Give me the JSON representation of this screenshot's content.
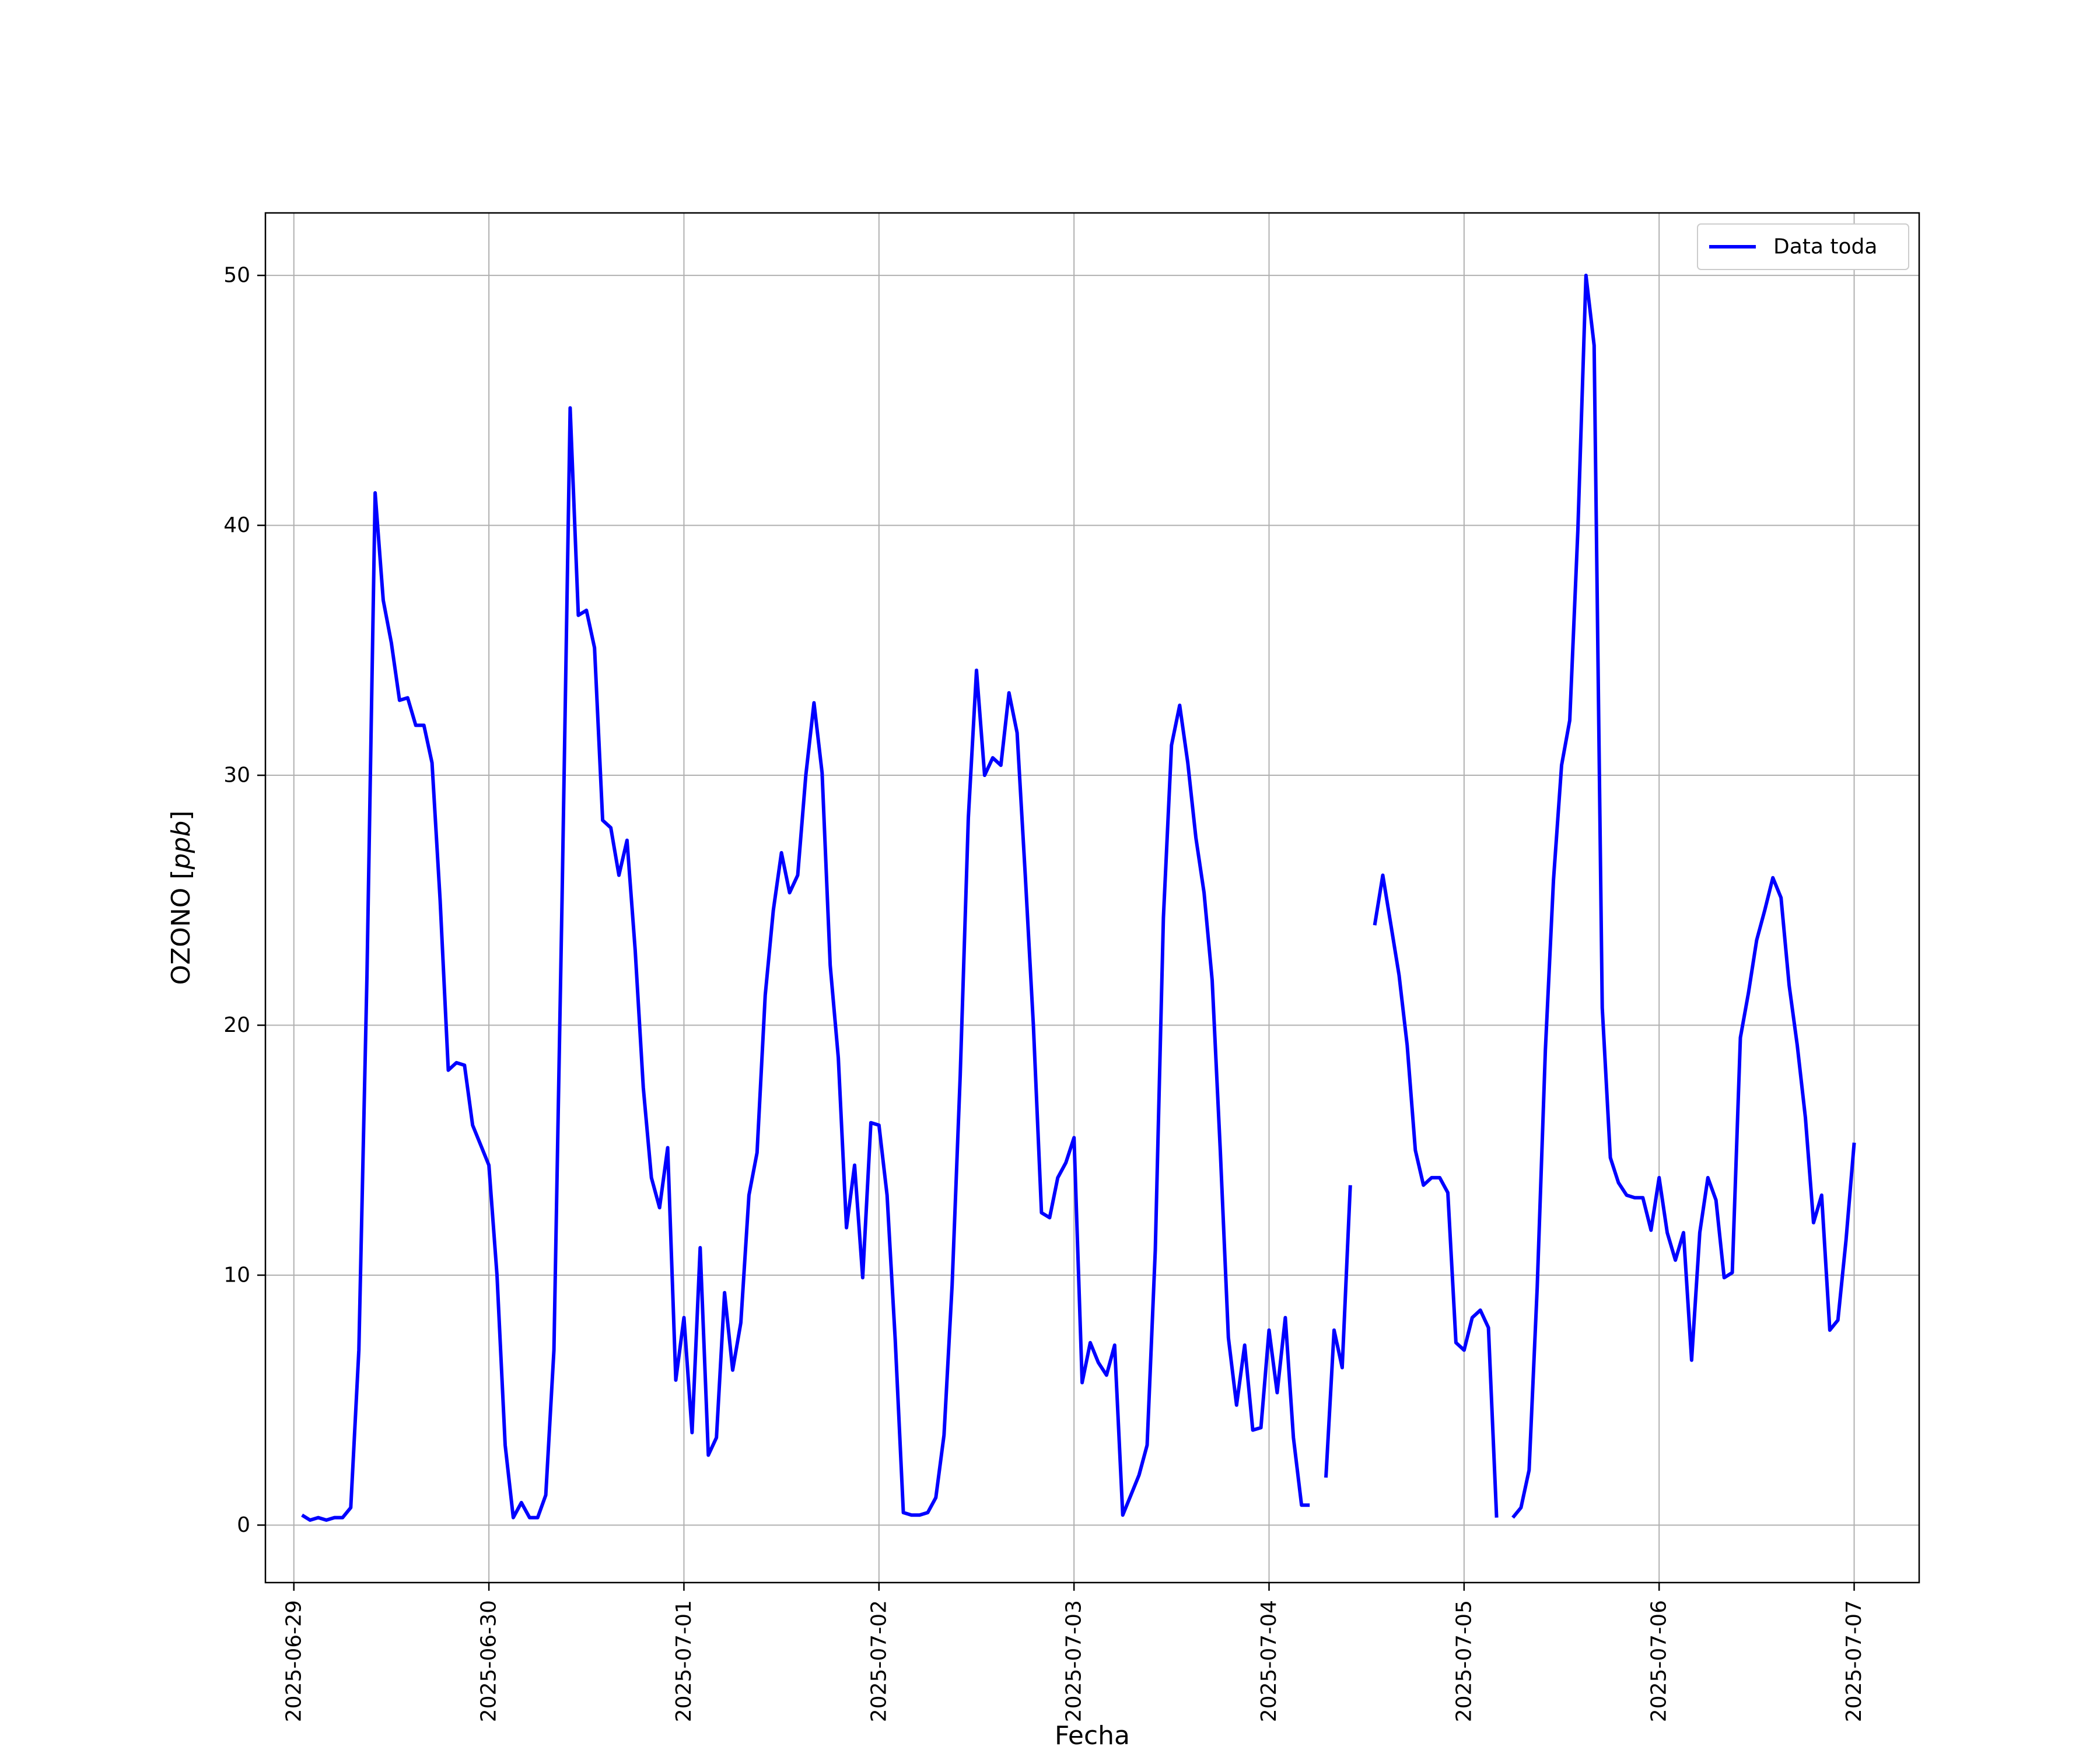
{
  "chart_data": {
    "type": "line",
    "title": "",
    "xlabel": "Fecha",
    "ylabel_text": "OZONO [",
    "ylabel_unit": "ppb",
    "ylabel_close": "]",
    "x_ticks": [
      "2025-06-29",
      "2025-06-30",
      "2025-07-01",
      "2025-07-02",
      "2025-07-03",
      "2025-07-04",
      "2025-07-05",
      "2025-07-06",
      "2025-07-07"
    ],
    "y_ticks": [
      0,
      10,
      20,
      30,
      40,
      50
    ],
    "xlim": [
      "2025-06-28T20:30",
      "2025-07-07T08:00"
    ],
    "ylim": [
      -2.3,
      52.5
    ],
    "grid": true,
    "legend": {
      "position": "top-right",
      "entries": [
        "Data toda"
      ]
    },
    "series": [
      {
        "name": "Data toda",
        "color": "#0000ff",
        "segments": [
          [
            [
              "2025-06-29T01:00",
              0.4
            ],
            [
              "2025-06-29T02:00",
              0.2
            ],
            [
              "2025-06-29T03:00",
              0.3
            ],
            [
              "2025-06-29T04:00",
              0.2
            ],
            [
              "2025-06-29T05:00",
              0.3
            ],
            [
              "2025-06-29T06:00",
              0.3
            ],
            [
              "2025-06-29T07:00",
              0.7
            ],
            [
              "2025-06-29T08:00",
              7.0
            ],
            [
              "2025-06-29T09:00",
              22.0
            ],
            [
              "2025-06-29T10:00",
              41.3
            ],
            [
              "2025-06-29T11:00",
              37.0
            ],
            [
              "2025-06-29T12:00",
              35.3
            ],
            [
              "2025-06-29T13:00",
              33.0
            ],
            [
              "2025-06-29T14:00",
              33.1
            ],
            [
              "2025-06-29T15:00",
              32.0
            ],
            [
              "2025-06-29T16:00",
              32.0
            ],
            [
              "2025-06-29T17:00",
              30.5
            ],
            [
              "2025-06-29T18:00",
              25.0
            ],
            [
              "2025-06-29T19:00",
              18.2
            ],
            [
              "2025-06-29T20:00",
              18.5
            ],
            [
              "2025-06-29T21:00",
              18.4
            ],
            [
              "2025-06-29T22:00",
              16.0
            ],
            [
              "2025-06-29T23:00",
              15.2
            ],
            [
              "2025-06-30T00:00",
              14.4
            ],
            [
              "2025-06-30T01:00",
              10.0
            ],
            [
              "2025-06-30T02:00",
              3.2
            ],
            [
              "2025-06-30T03:00",
              0.3
            ],
            [
              "2025-06-30T04:00",
              0.9
            ],
            [
              "2025-06-30T05:00",
              0.3
            ],
            [
              "2025-06-30T06:00",
              0.3
            ],
            [
              "2025-06-30T07:00",
              1.2
            ],
            [
              "2025-06-30T08:00",
              7.0
            ],
            [
              "2025-06-30T09:00",
              25.0
            ],
            [
              "2025-06-30T10:00",
              44.7
            ],
            [
              "2025-06-30T11:00",
              36.4
            ],
            [
              "2025-06-30T12:00",
              36.6
            ],
            [
              "2025-06-30T13:00",
              35.1
            ],
            [
              "2025-06-30T14:00",
              28.2
            ],
            [
              "2025-06-30T15:00",
              27.9
            ],
            [
              "2025-06-30T16:00",
              26.0
            ],
            [
              "2025-06-30T17:00",
              27.4
            ],
            [
              "2025-06-30T18:00",
              23.0
            ],
            [
              "2025-06-30T19:00",
              17.5
            ],
            [
              "2025-06-30T20:00",
              13.9
            ],
            [
              "2025-06-30T21:00",
              12.7
            ],
            [
              "2025-06-30T22:00",
              15.1
            ],
            [
              "2025-06-30T23:00",
              5.8
            ],
            [
              "2025-07-01T00:00",
              8.3
            ],
            [
              "2025-07-01T01:00",
              3.7
            ],
            [
              "2025-07-01T02:00",
              11.1
            ],
            [
              "2025-07-01T03:00",
              2.8
            ],
            [
              "2025-07-01T04:00",
              3.5
            ],
            [
              "2025-07-01T05:00",
              9.3
            ],
            [
              "2025-07-01T06:00",
              6.2
            ],
            [
              "2025-07-01T07:00",
              8.1
            ],
            [
              "2025-07-01T08:00",
              13.2
            ],
            [
              "2025-07-01T09:00",
              14.9
            ],
            [
              "2025-07-01T10:00",
              21.2
            ],
            [
              "2025-07-01T11:00",
              24.6
            ],
            [
              "2025-07-01T12:00",
              26.9
            ],
            [
              "2025-07-01T13:00",
              25.3
            ],
            [
              "2025-07-01T14:00",
              26.0
            ],
            [
              "2025-07-01T15:00",
              30.0
            ],
            [
              "2025-07-01T16:00",
              32.9
            ],
            [
              "2025-07-01T17:00",
              30.1
            ],
            [
              "2025-07-01T18:00",
              22.4
            ],
            [
              "2025-07-01T19:00",
              18.7
            ],
            [
              "2025-07-01T20:00",
              11.9
            ],
            [
              "2025-07-01T21:00",
              14.4
            ],
            [
              "2025-07-01T22:00",
              9.9
            ],
            [
              "2025-07-01T23:00",
              16.1
            ],
            [
              "2025-07-02T00:00",
              16.0
            ],
            [
              "2025-07-02T01:00",
              13.2
            ],
            [
              "2025-07-02T02:00",
              7.4
            ],
            [
              "2025-07-02T03:00",
              0.5
            ],
            [
              "2025-07-02T04:00",
              0.4
            ],
            [
              "2025-07-02T05:00",
              0.4
            ],
            [
              "2025-07-02T06:00",
              0.5
            ],
            [
              "2025-07-02T07:00",
              1.1
            ],
            [
              "2025-07-02T08:00",
              3.6
            ],
            [
              "2025-07-02T09:00",
              9.6
            ],
            [
              "2025-07-02T10:00",
              18.0
            ],
            [
              "2025-07-02T11:00",
              28.3
            ],
            [
              "2025-07-02T12:00",
              34.2
            ],
            [
              "2025-07-02T13:00",
              30.0
            ],
            [
              "2025-07-02T14:00",
              30.7
            ],
            [
              "2025-07-02T15:00",
              30.4
            ],
            [
              "2025-07-02T16:00",
              33.3
            ],
            [
              "2025-07-02T17:00",
              31.7
            ],
            [
              "2025-07-02T18:00",
              26.0
            ],
            [
              "2025-07-02T19:00",
              20.0
            ],
            [
              "2025-07-02T20:00",
              12.5
            ],
            [
              "2025-07-02T21:00",
              12.3
            ],
            [
              "2025-07-02T22:00",
              13.9
            ],
            [
              "2025-07-02T23:00",
              14.5
            ],
            [
              "2025-07-03T00:00",
              15.5
            ],
            [
              "2025-07-03T01:00",
              5.7
            ],
            [
              "2025-07-03T02:00",
              7.3
            ],
            [
              "2025-07-03T03:00",
              6.5
            ],
            [
              "2025-07-03T04:00",
              6.0
            ],
            [
              "2025-07-03T05:00",
              7.2
            ],
            [
              "2025-07-03T06:00",
              0.4
            ],
            [
              "2025-07-03T07:00",
              1.2
            ],
            [
              "2025-07-03T08:00",
              2.0
            ],
            [
              "2025-07-03T09:00",
              3.2
            ],
            [
              "2025-07-03T10:00",
              11.0
            ],
            [
              "2025-07-03T11:00",
              24.3
            ],
            [
              "2025-07-03T12:00",
              31.2
            ],
            [
              "2025-07-03T13:00",
              32.8
            ],
            [
              "2025-07-03T14:00",
              30.5
            ],
            [
              "2025-07-03T15:00",
              27.5
            ],
            [
              "2025-07-03T16:00",
              25.3
            ],
            [
              "2025-07-03T17:00",
              21.8
            ],
            [
              "2025-07-03T18:00",
              15.0
            ],
            [
              "2025-07-03T19:00",
              7.5
            ],
            [
              "2025-07-03T20:00",
              4.8
            ],
            [
              "2025-07-03T21:00",
              7.2
            ],
            [
              "2025-07-03T22:00",
              3.8
            ],
            [
              "2025-07-03T23:00",
              3.9
            ],
            [
              "2025-07-04T00:00",
              7.8
            ],
            [
              "2025-07-04T01:00",
              5.3
            ],
            [
              "2025-07-04T02:00",
              8.3
            ],
            [
              "2025-07-04T03:00",
              3.5
            ],
            [
              "2025-07-04T04:00",
              0.8
            ],
            [
              "2025-07-04T05:00",
              0.8
            ]
          ],
          [
            [
              "2025-07-04T07:00",
              1.9
            ],
            [
              "2025-07-04T08:00",
              7.8
            ],
            [
              "2025-07-04T09:00",
              6.3
            ],
            [
              "2025-07-04T10:00",
              13.6
            ]
          ],
          [
            [
              "2025-07-04T13:00",
              24.0
            ],
            [
              "2025-07-04T14:00",
              26.0
            ],
            [
              "2025-07-04T15:00",
              24.0
            ],
            [
              "2025-07-04T16:00",
              22.0
            ],
            [
              "2025-07-04T17:00",
              19.2
            ],
            [
              "2025-07-04T18:00",
              15.0
            ],
            [
              "2025-07-04T19:00",
              13.6
            ],
            [
              "2025-07-04T20:00",
              13.9
            ],
            [
              "2025-07-04T21:00",
              13.9
            ],
            [
              "2025-07-04T22:00",
              13.3
            ],
            [
              "2025-07-04T23:00",
              7.3
            ],
            [
              "2025-07-05T00:00",
              7.0
            ],
            [
              "2025-07-05T01:00",
              8.3
            ],
            [
              "2025-07-05T02:00",
              8.6
            ],
            [
              "2025-07-05T03:00",
              7.9
            ],
            [
              "2025-07-05T04:00",
              0.3
            ]
          ],
          [
            [
              "2025-07-05T06:00",
              0.3
            ],
            [
              "2025-07-05T07:00",
              0.7
            ],
            [
              "2025-07-05T08:00",
              2.2
            ],
            [
              "2025-07-05T09:00",
              9.5
            ],
            [
              "2025-07-05T10:00",
              19.0
            ],
            [
              "2025-07-05T11:00",
              25.8
            ],
            [
              "2025-07-05T12:00",
              30.4
            ],
            [
              "2025-07-05T13:00",
              32.2
            ],
            [
              "2025-07-05T14:00",
              39.8
            ],
            [
              "2025-07-05T15:00",
              50.0
            ],
            [
              "2025-07-05T16:00",
              47.2
            ],
            [
              "2025-07-05T17:00",
              20.7
            ],
            [
              "2025-07-05T18:00",
              14.7
            ],
            [
              "2025-07-05T19:00",
              13.7
            ],
            [
              "2025-07-05T20:00",
              13.2
            ],
            [
              "2025-07-05T21:00",
              13.1
            ],
            [
              "2025-07-05T22:00",
              13.1
            ],
            [
              "2025-07-05T23:00",
              11.8
            ],
            [
              "2025-07-06T00:00",
              13.9
            ],
            [
              "2025-07-06T01:00",
              11.7
            ],
            [
              "2025-07-06T02:00",
              10.6
            ],
            [
              "2025-07-06T03:00",
              11.7
            ],
            [
              "2025-07-06T04:00",
              6.6
            ],
            [
              "2025-07-06T05:00",
              11.7
            ],
            [
              "2025-07-06T06:00",
              13.9
            ],
            [
              "2025-07-06T07:00",
              13.0
            ],
            [
              "2025-07-06T08:00",
              9.9
            ],
            [
              "2025-07-06T09:00",
              10.1
            ],
            [
              "2025-07-06T10:00",
              19.5
            ],
            [
              "2025-07-06T11:00",
              21.3
            ],
            [
              "2025-07-06T12:00",
              23.4
            ],
            [
              "2025-07-06T13:00",
              24.6
            ],
            [
              "2025-07-06T14:00",
              25.9
            ],
            [
              "2025-07-06T15:00",
              25.1
            ],
            [
              "2025-07-06T16:00",
              21.6
            ],
            [
              "2025-07-06T17:00",
              19.2
            ],
            [
              "2025-07-06T18:00",
              16.3
            ],
            [
              "2025-07-06T19:00",
              12.1
            ],
            [
              "2025-07-06T20:00",
              13.2
            ],
            [
              "2025-07-06T21:00",
              7.8
            ],
            [
              "2025-07-06T22:00",
              8.2
            ],
            [
              "2025-07-06T23:00",
              11.4
            ],
            [
              "2025-07-07T00:00",
              15.3
            ]
          ]
        ]
      }
    ]
  }
}
